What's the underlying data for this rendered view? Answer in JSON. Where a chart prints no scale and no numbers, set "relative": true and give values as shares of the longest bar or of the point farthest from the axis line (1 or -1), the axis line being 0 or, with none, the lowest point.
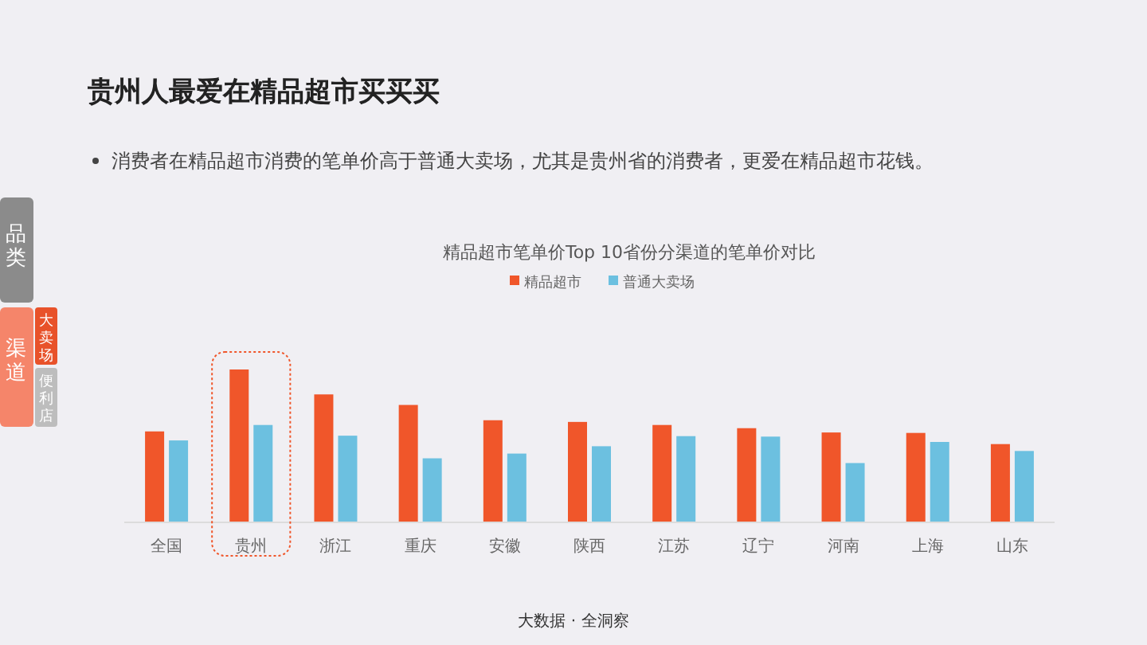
{
  "chart_data": {
    "type": "bar",
    "title": "贵州人最爱在精品超市买买买",
    "subtitle": "消费者在精品超市消费的笔单价高于普通大卖场，尤其是贵州省的消费者，更爱在精品超市花钱。",
    "categories": [
      "全国",
      "贵州",
      "浙江",
      "重庆",
      "安徽",
      "陕西",
      "江苏",
      "辽宁",
      "河南",
      "上海",
      "山东"
    ],
    "relative": true,
    "series": [
      {
        "name": "精品超市",
        "color": "#f0562a",
        "values": [
          0.595,
          1,
          0.837,
          0.768,
          0.668,
          0.657,
          0.637,
          0.616,
          0.588,
          0.585,
          0.512
        ]
      },
      {
        "name": "普通大卖场",
        "color": "#6cc0e0",
        "values": [
          0.536,
          0.637,
          0.567,
          0.419,
          0.45,
          0.498,
          0.564,
          0.561,
          0.388,
          0.526,
          0.467
        ]
      }
    ],
    "legend": "top",
    "annotations": [
      "品类",
      "渠道",
      "大卖场",
      "便利店",
      "大数据 · 全洞察",
      "精品超市笔单价Top 10省份分渠道的笔单价对比"
    ]
  }
}
